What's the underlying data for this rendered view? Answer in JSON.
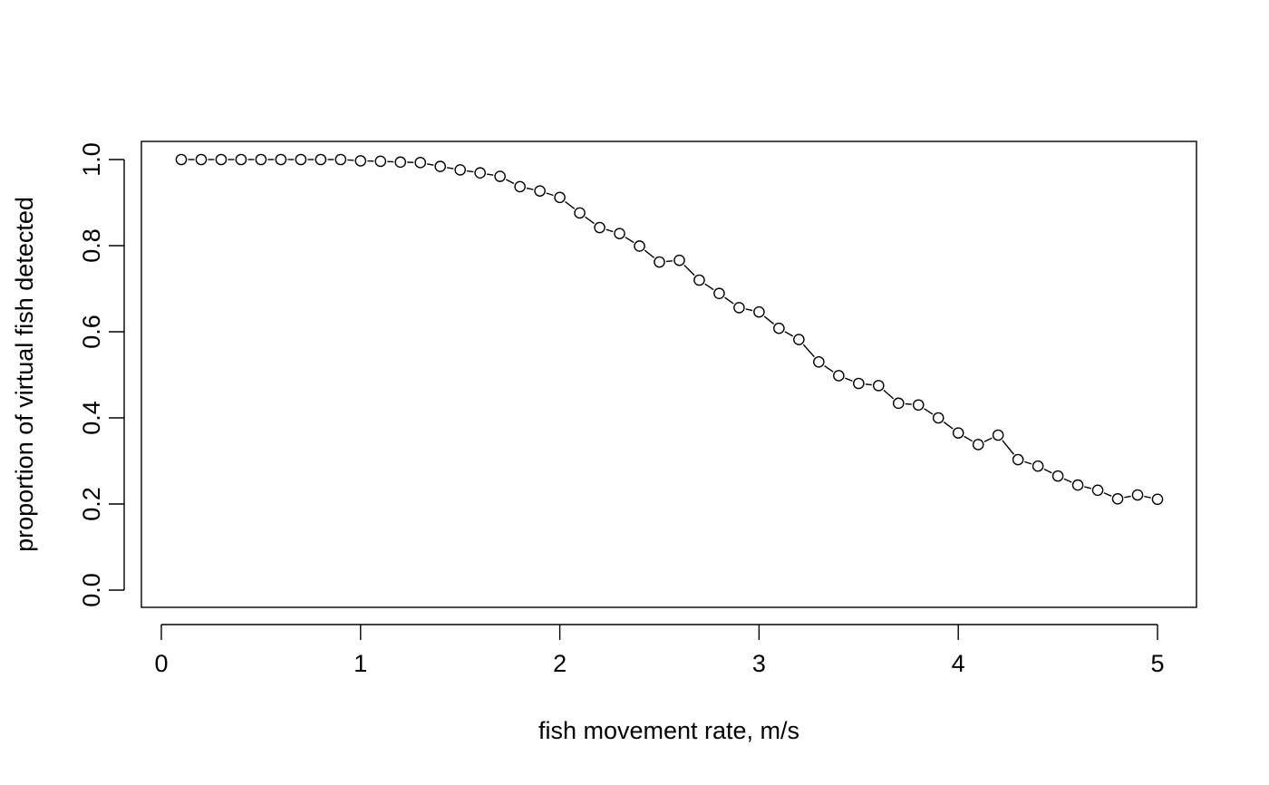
{
  "chart_data": {
    "type": "line",
    "title": "",
    "xlabel": "fish movement rate, m/s",
    "ylabel": "proportion of virtual fish detected",
    "xlim": [
      0,
      5
    ],
    "ylim": [
      0,
      1
    ],
    "x_ticks": [
      0,
      1,
      2,
      3,
      4,
      5
    ],
    "x_tick_labels": [
      "0",
      "1",
      "2",
      "3",
      "4",
      "5"
    ],
    "y_ticks": [
      0,
      0.2,
      0.4,
      0.6,
      0.8,
      1
    ],
    "y_tick_labels": [
      "0.0",
      "0.2",
      "0.4",
      "0.6",
      "0.8",
      "1.0"
    ],
    "grid": false,
    "colors": {
      "line": "#000000",
      "marker_stroke": "#000000",
      "marker_fill": "#ffffff"
    },
    "marker": "open-circle",
    "series": [
      {
        "x": [
          0.1,
          0.2,
          0.3,
          0.4,
          0.5,
          0.6,
          0.7,
          0.8,
          0.9,
          1.0,
          1.1,
          1.2,
          1.3,
          1.4,
          1.5,
          1.6,
          1.7,
          1.8,
          1.9,
          2.0,
          2.1,
          2.2,
          2.3,
          2.4,
          2.5,
          2.6,
          2.7,
          2.8,
          2.9,
          3.0,
          3.1,
          3.2,
          3.3,
          3.4,
          3.5,
          3.6,
          3.7,
          3.8,
          3.9,
          4.0,
          4.1,
          4.2,
          4.3,
          4.4,
          4.5,
          4.6,
          4.7,
          4.8,
          4.9,
          5.0
        ],
        "y": [
          1.0,
          1.0,
          1.0,
          1.0,
          1.0,
          1.0,
          1.0,
          1.0,
          1.0,
          0.997,
          0.996,
          0.994,
          0.993,
          0.984,
          0.976,
          0.969,
          0.961,
          0.937,
          0.927,
          0.912,
          0.876,
          0.842,
          0.828,
          0.799,
          0.762,
          0.766,
          0.72,
          0.689,
          0.656,
          0.646,
          0.608,
          0.582,
          0.53,
          0.498,
          0.48,
          0.475,
          0.434,
          0.43,
          0.4,
          0.365,
          0.338,
          0.36,
          0.303,
          0.288,
          0.265,
          0.244,
          0.232,
          0.212,
          0.221,
          0.211
        ]
      }
    ]
  }
}
